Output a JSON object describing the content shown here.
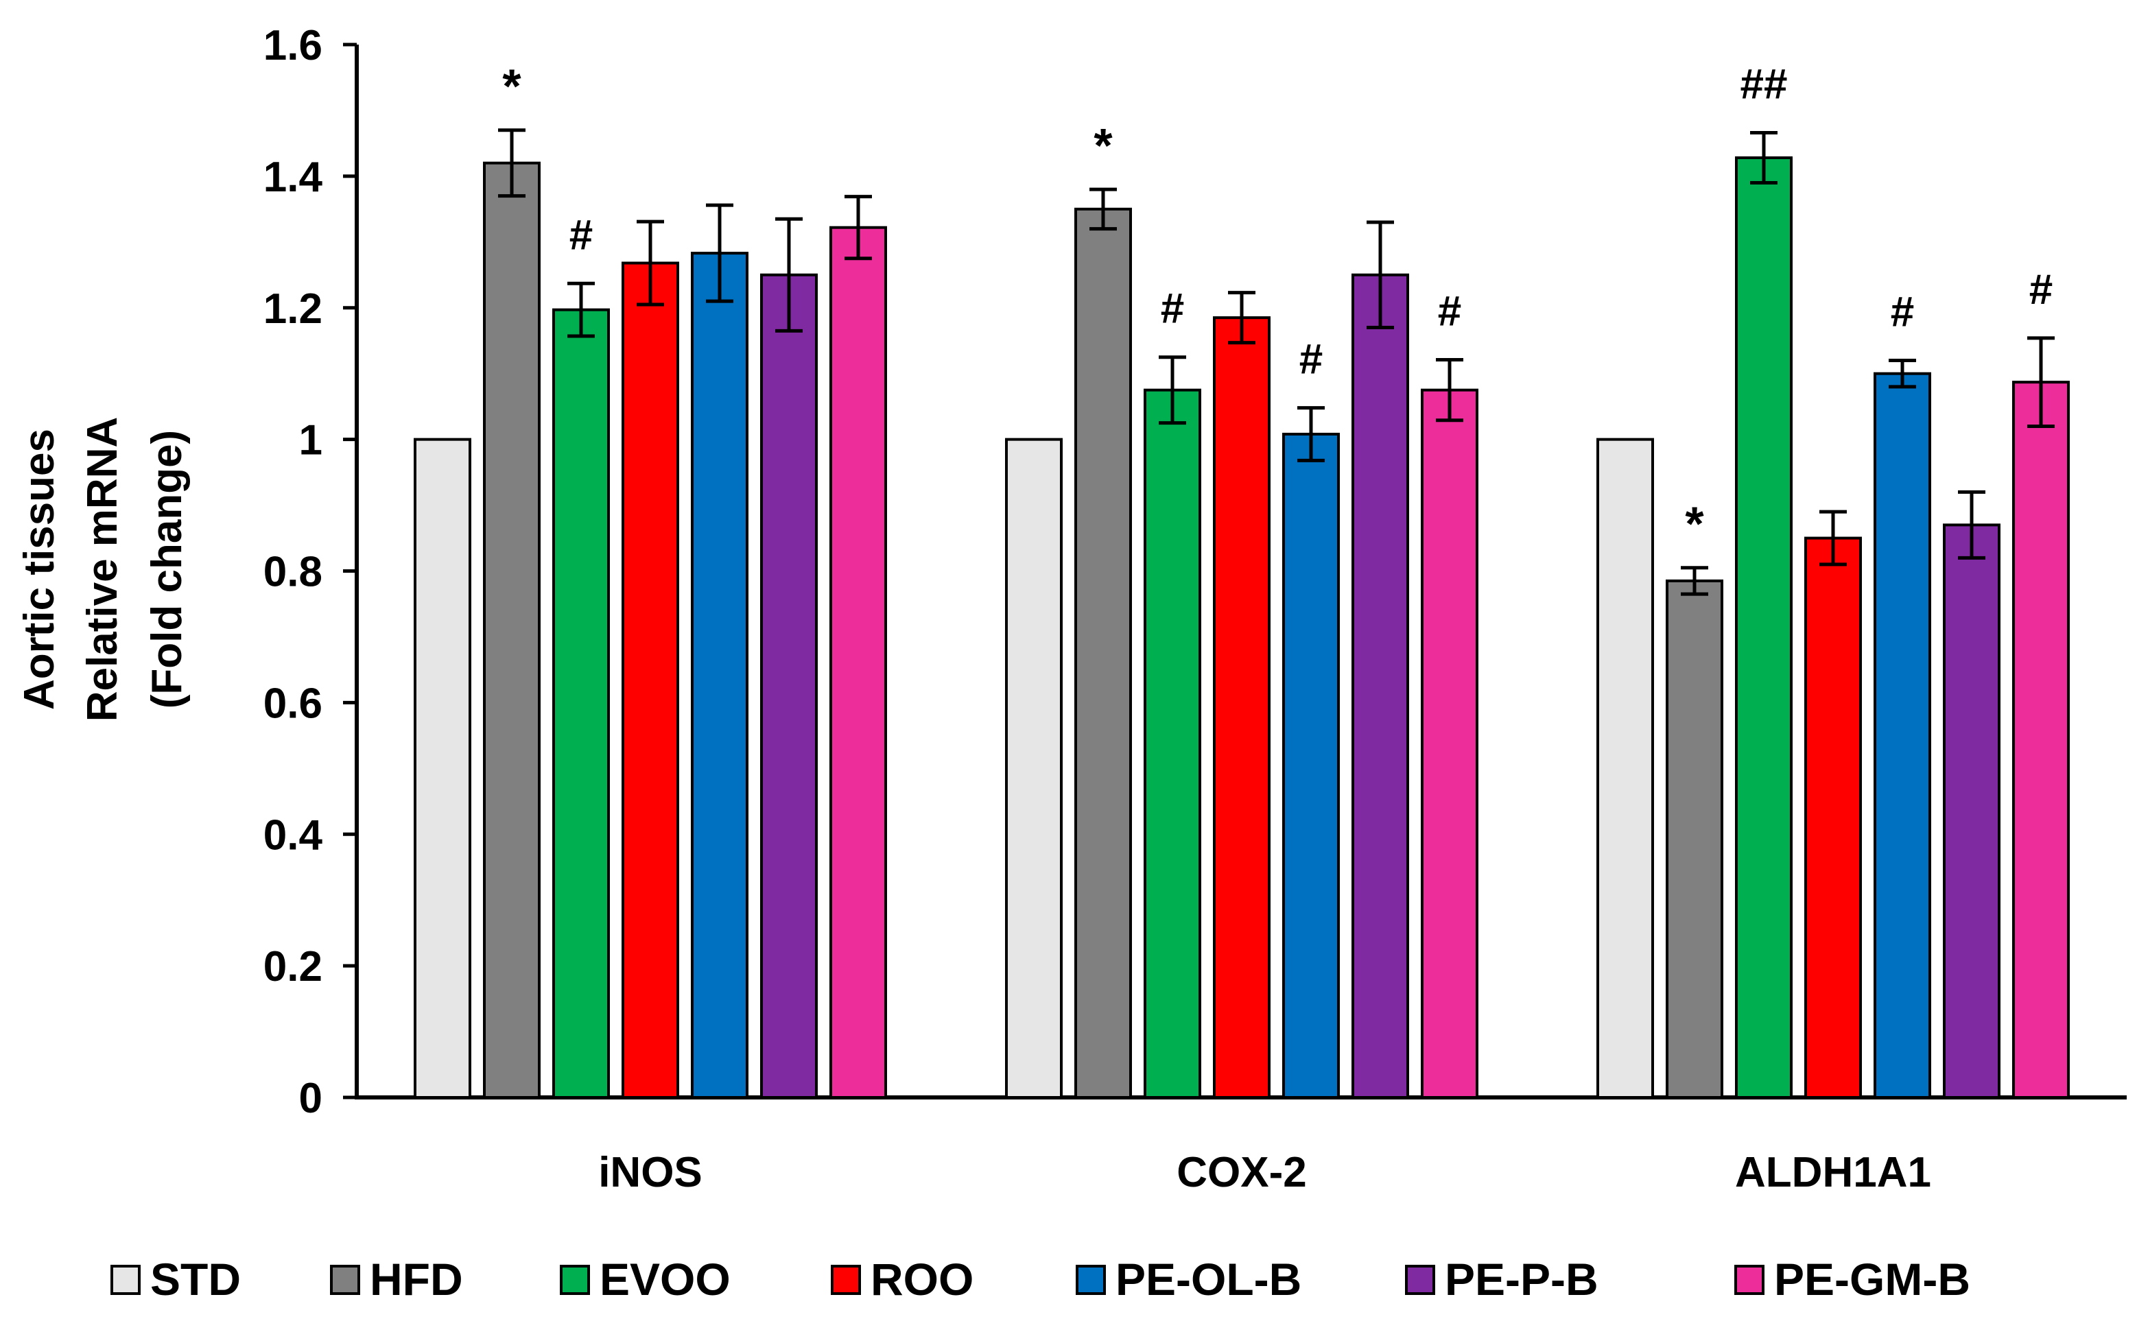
{
  "chart_data": {
    "type": "bar",
    "title": "",
    "xlabel": "",
    "ylabel_lines": [
      "Aortic tissues",
      "Relative mRNA",
      "(Fold change)"
    ],
    "ylim": [
      0,
      1.6
    ],
    "yticks": [
      "0",
      "0.2",
      "0.4",
      "0.6",
      "0.8",
      "1",
      "1.2",
      "1.4",
      "1.6"
    ],
    "categories": [
      "iNOS",
      "COX-2",
      "ALDH1A1"
    ],
    "legend_position": "bottom",
    "series": [
      {
        "name": "STD",
        "color": "#e6e6e6",
        "values": [
          1.0,
          1.0,
          1.0
        ],
        "errors": [
          0,
          0,
          0
        ],
        "annotations": [
          "",
          "",
          ""
        ]
      },
      {
        "name": "HFD",
        "color": "#808080",
        "values": [
          1.42,
          1.35,
          0.785
        ],
        "errors": [
          0.05,
          0.03,
          0.02
        ],
        "annotations": [
          "*",
          "*",
          "*"
        ]
      },
      {
        "name": "EVOO",
        "color": "#00b050",
        "values": [
          1.197,
          1.075,
          1.428
        ],
        "errors": [
          0.04,
          0.05,
          0.038
        ],
        "annotations": [
          "#",
          "#",
          "##"
        ]
      },
      {
        "name": "ROO",
        "color": "#ff0000",
        "values": [
          1.268,
          1.185,
          0.85
        ],
        "errors": [
          0.063,
          0.038,
          0.04
        ],
        "annotations": [
          "",
          "",
          ""
        ]
      },
      {
        "name": "PE-OL-B",
        "color": "#0070c0",
        "values": [
          1.283,
          1.008,
          1.1
        ],
        "errors": [
          0.073,
          0.04,
          0.02
        ],
        "annotations": [
          "",
          "#",
          "#"
        ]
      },
      {
        "name": "PE-P-B",
        "color": "#7f2aa0",
        "values": [
          1.25,
          1.25,
          0.87
        ],
        "errors": [
          0.085,
          0.08,
          0.05
        ],
        "annotations": [
          "",
          "",
          ""
        ]
      },
      {
        "name": "PE-GM-B",
        "color": "#ec2d9a",
        "values": [
          1.322,
          1.075,
          1.087
        ],
        "errors": [
          0.047,
          0.046,
          0.067
        ],
        "annotations": [
          "",
          "#",
          "#"
        ]
      }
    ]
  }
}
